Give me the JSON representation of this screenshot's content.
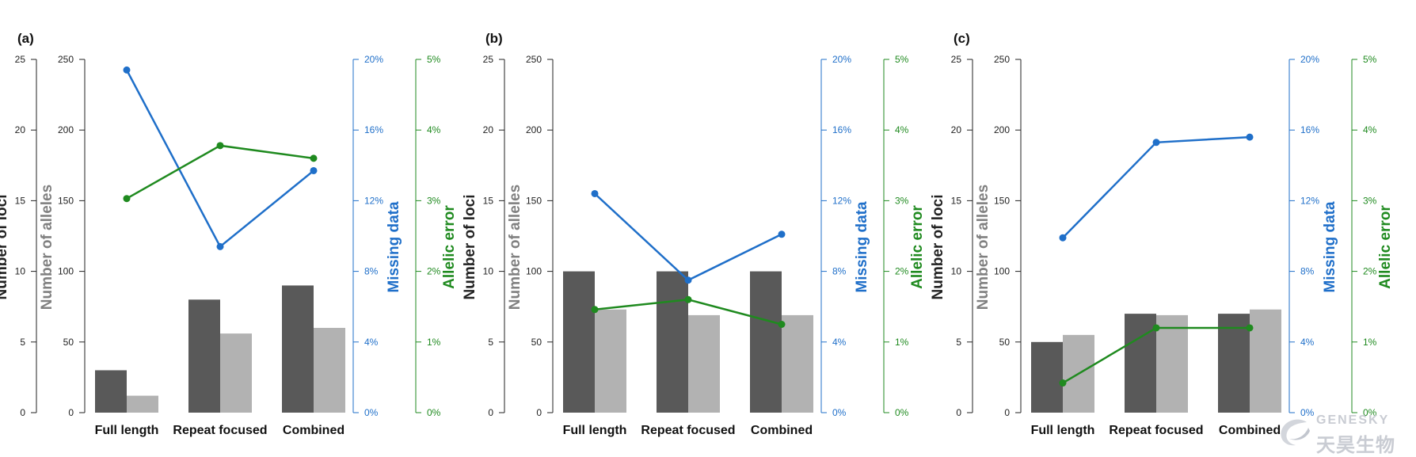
{
  "colors": {
    "loci_bar": "#595959",
    "alleles_bar": "#b2b2b2",
    "missing_line": "#1f6fc9",
    "error_line": "#1f8a1f",
    "loci_axis_text": "#222222",
    "alleles_axis_text": "#808080"
  },
  "watermark": {
    "latin": "GENESKY",
    "cn": "天昊生物",
    "icon": "genesky-logo-swoosh"
  },
  "chart_data": [
    {
      "type": "bar",
      "panel_label": "(a)",
      "categories": [
        "Full length",
        "Repeat focused",
        "Combined"
      ],
      "axes": {
        "loci": {
          "label": "Number of loci",
          "range": [
            0,
            25
          ],
          "ticks": [
            "0",
            "5",
            "10",
            "15",
            "20",
            "25"
          ]
        },
        "alleles": {
          "label": "Number of alleles",
          "range": [
            0,
            250
          ],
          "ticks": [
            "0",
            "50",
            "100",
            "150",
            "200",
            "250"
          ]
        },
        "missing": {
          "label": "Missing data",
          "range": [
            0,
            20
          ],
          "ticks": [
            "0%",
            "4%",
            "8%",
            "12%",
            "16%",
            "20%"
          ]
        },
        "error": {
          "label": "Allelic error",
          "range": [
            0,
            5
          ],
          "ticks": [
            "0%",
            "1%",
            "2%",
            "3%",
            "4%",
            "5%"
          ]
        }
      },
      "series": [
        {
          "kind": "bar",
          "axis": "loci",
          "values": [
            3,
            8,
            9
          ]
        },
        {
          "kind": "bar",
          "axis": "alleles",
          "values": [
            12,
            56,
            60
          ]
        },
        {
          "kind": "line",
          "axis": "missing",
          "values": [
            19.4,
            9.4,
            13.7
          ]
        },
        {
          "kind": "line",
          "axis": "error",
          "values": [
            3.03,
            3.78,
            3.6
          ]
        }
      ]
    },
    {
      "type": "bar",
      "panel_label": "(b)",
      "categories": [
        "Full length",
        "Repeat focused",
        "Combined"
      ],
      "axes": {
        "loci": {
          "label": "Number of loci",
          "range": [
            0,
            25
          ],
          "ticks": [
            "0",
            "5",
            "10",
            "15",
            "20",
            "25"
          ]
        },
        "alleles": {
          "label": "Number of alleles",
          "range": [
            0,
            250
          ],
          "ticks": [
            "0",
            "50",
            "100",
            "150",
            "200",
            "250"
          ]
        },
        "missing": {
          "label": "Missing data",
          "range": [
            0,
            20
          ],
          "ticks": [
            "0%",
            "4%",
            "8%",
            "12%",
            "16%",
            "20%"
          ]
        },
        "error": {
          "label": "Allelic error",
          "range": [
            0,
            5
          ],
          "ticks": [
            "0%",
            "1%",
            "2%",
            "3%",
            "4%",
            "5%"
          ]
        }
      },
      "series": [
        {
          "kind": "bar",
          "axis": "loci",
          "values": [
            10,
            10,
            10
          ]
        },
        {
          "kind": "bar",
          "axis": "alleles",
          "values": [
            73,
            69,
            69
          ]
        },
        {
          "kind": "line",
          "axis": "missing",
          "values": [
            12.4,
            7.5,
            10.1
          ]
        },
        {
          "kind": "line",
          "axis": "error",
          "values": [
            1.46,
            1.6,
            1.25
          ]
        }
      ]
    },
    {
      "type": "bar",
      "panel_label": "(c)",
      "categories": [
        "Full length",
        "Repeat focused",
        "Combined"
      ],
      "axes": {
        "loci": {
          "label": "Number of loci",
          "range": [
            0,
            25
          ],
          "ticks": [
            "0",
            "5",
            "10",
            "15",
            "20",
            "25"
          ]
        },
        "alleles": {
          "label": "Number of alleles",
          "range": [
            0,
            250
          ],
          "ticks": [
            "0",
            "50",
            "100",
            "150",
            "200",
            "250"
          ]
        },
        "missing": {
          "label": "Missing data",
          "range": [
            0,
            20
          ],
          "ticks": [
            "0%",
            "4%",
            "8%",
            "12%",
            "16%",
            "20%"
          ]
        },
        "error": {
          "label": "Allelic error",
          "range": [
            0,
            5
          ],
          "ticks": [
            "0%",
            "1%",
            "2%",
            "3%",
            "4%",
            "5%"
          ]
        }
      },
      "series": [
        {
          "kind": "bar",
          "axis": "loci",
          "values": [
            5,
            7,
            7
          ]
        },
        {
          "kind": "bar",
          "axis": "alleles",
          "values": [
            55,
            69,
            73
          ]
        },
        {
          "kind": "line",
          "axis": "missing",
          "values": [
            9.9,
            15.3,
            15.6
          ]
        },
        {
          "kind": "line",
          "axis": "error",
          "values": [
            0.42,
            1.2,
            1.2
          ]
        }
      ]
    }
  ]
}
